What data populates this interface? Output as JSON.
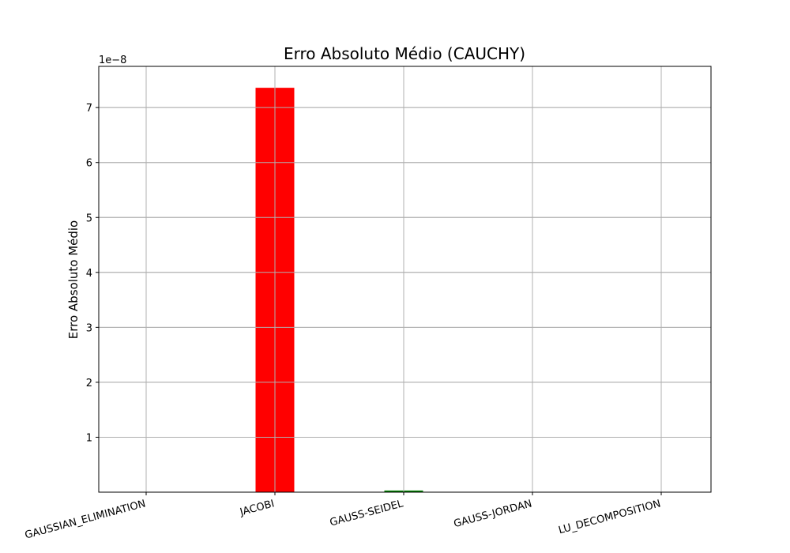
{
  "chart_data": {
    "type": "bar",
    "title": "Erro Absoluto Médio (CAUCHY)",
    "xlabel": "",
    "ylabel": "Erro Absoluto Médio",
    "y_offset_text": "1e−8",
    "categories": [
      "GAUSSIAN_ELIMINATION",
      "JACOBI",
      "GAUSS-SEIDEL",
      "GAUSS-JORDAN",
      "LU_DECOMPOSITION"
    ],
    "values": [
      0,
      7.36e-08,
      3e-10,
      0,
      0
    ],
    "bar_colors": [
      "#ff0000",
      "#ff0000",
      "#008000",
      "#ff0000",
      "#ff0000"
    ],
    "yticks": [
      1,
      2,
      3,
      4,
      5,
      6,
      7
    ],
    "ytick_labels": [
      "1",
      "2",
      "3",
      "4",
      "5",
      "6",
      "7"
    ],
    "ylim": [
      0,
      7.75e-08
    ],
    "grid": true
  }
}
